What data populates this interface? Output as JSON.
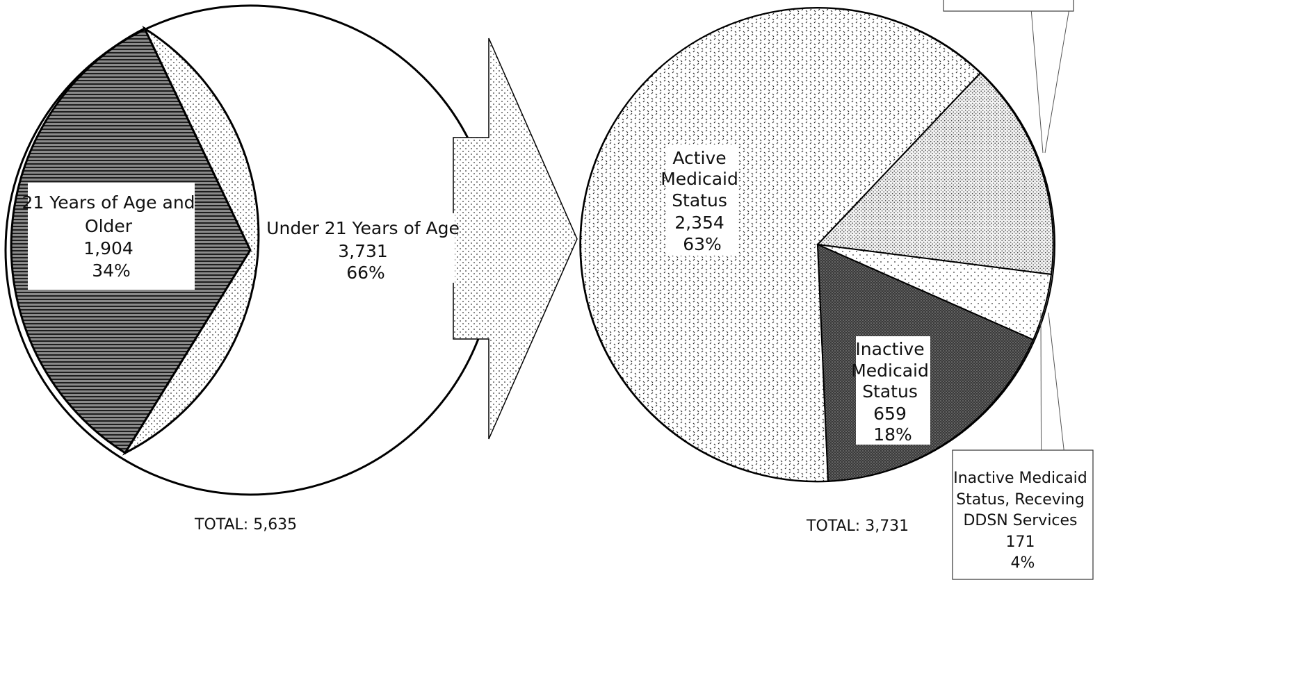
{
  "chart_data": [
    {
      "type": "pie",
      "title": "",
      "slices": [
        {
          "lines": [
            "21 Years of Age and",
            "Older",
            "1,904",
            "34%"
          ],
          "value": 1904,
          "percent": 34,
          "pattern": "horizontal-lines"
        },
        {
          "lines": [
            "Under 21 Years of Age",
            "3,731",
            "66%"
          ],
          "value": 3731,
          "percent": 66,
          "pattern": "fine-dots"
        }
      ],
      "total_label": "TOTAL: 5,635",
      "total": 5635
    },
    {
      "type": "pie",
      "title": "",
      "slices": [
        {
          "lines": [
            "Active",
            "Medicaid",
            "Status",
            "2,354",
            "63%"
          ],
          "value": 2354,
          "percent": 63,
          "pattern": "dashes"
        },
        {
          "lines": [
            "Inactive",
            "Medicaid",
            "Status",
            "659",
            "18%"
          ],
          "value": 659,
          "percent": 18,
          "pattern": "dark-dots"
        },
        {
          "lines": [
            "Inactive Medicaid",
            "Status, Receving",
            "DDSN Services",
            "171",
            "4%"
          ],
          "value": 171,
          "percent": 4,
          "pattern": "sparse-dots"
        },
        {
          "lines": [],
          "value": 547,
          "percent": 15,
          "pattern": "dense-dots"
        }
      ],
      "total_label": "TOTAL: 3,731",
      "total": 3731
    }
  ]
}
